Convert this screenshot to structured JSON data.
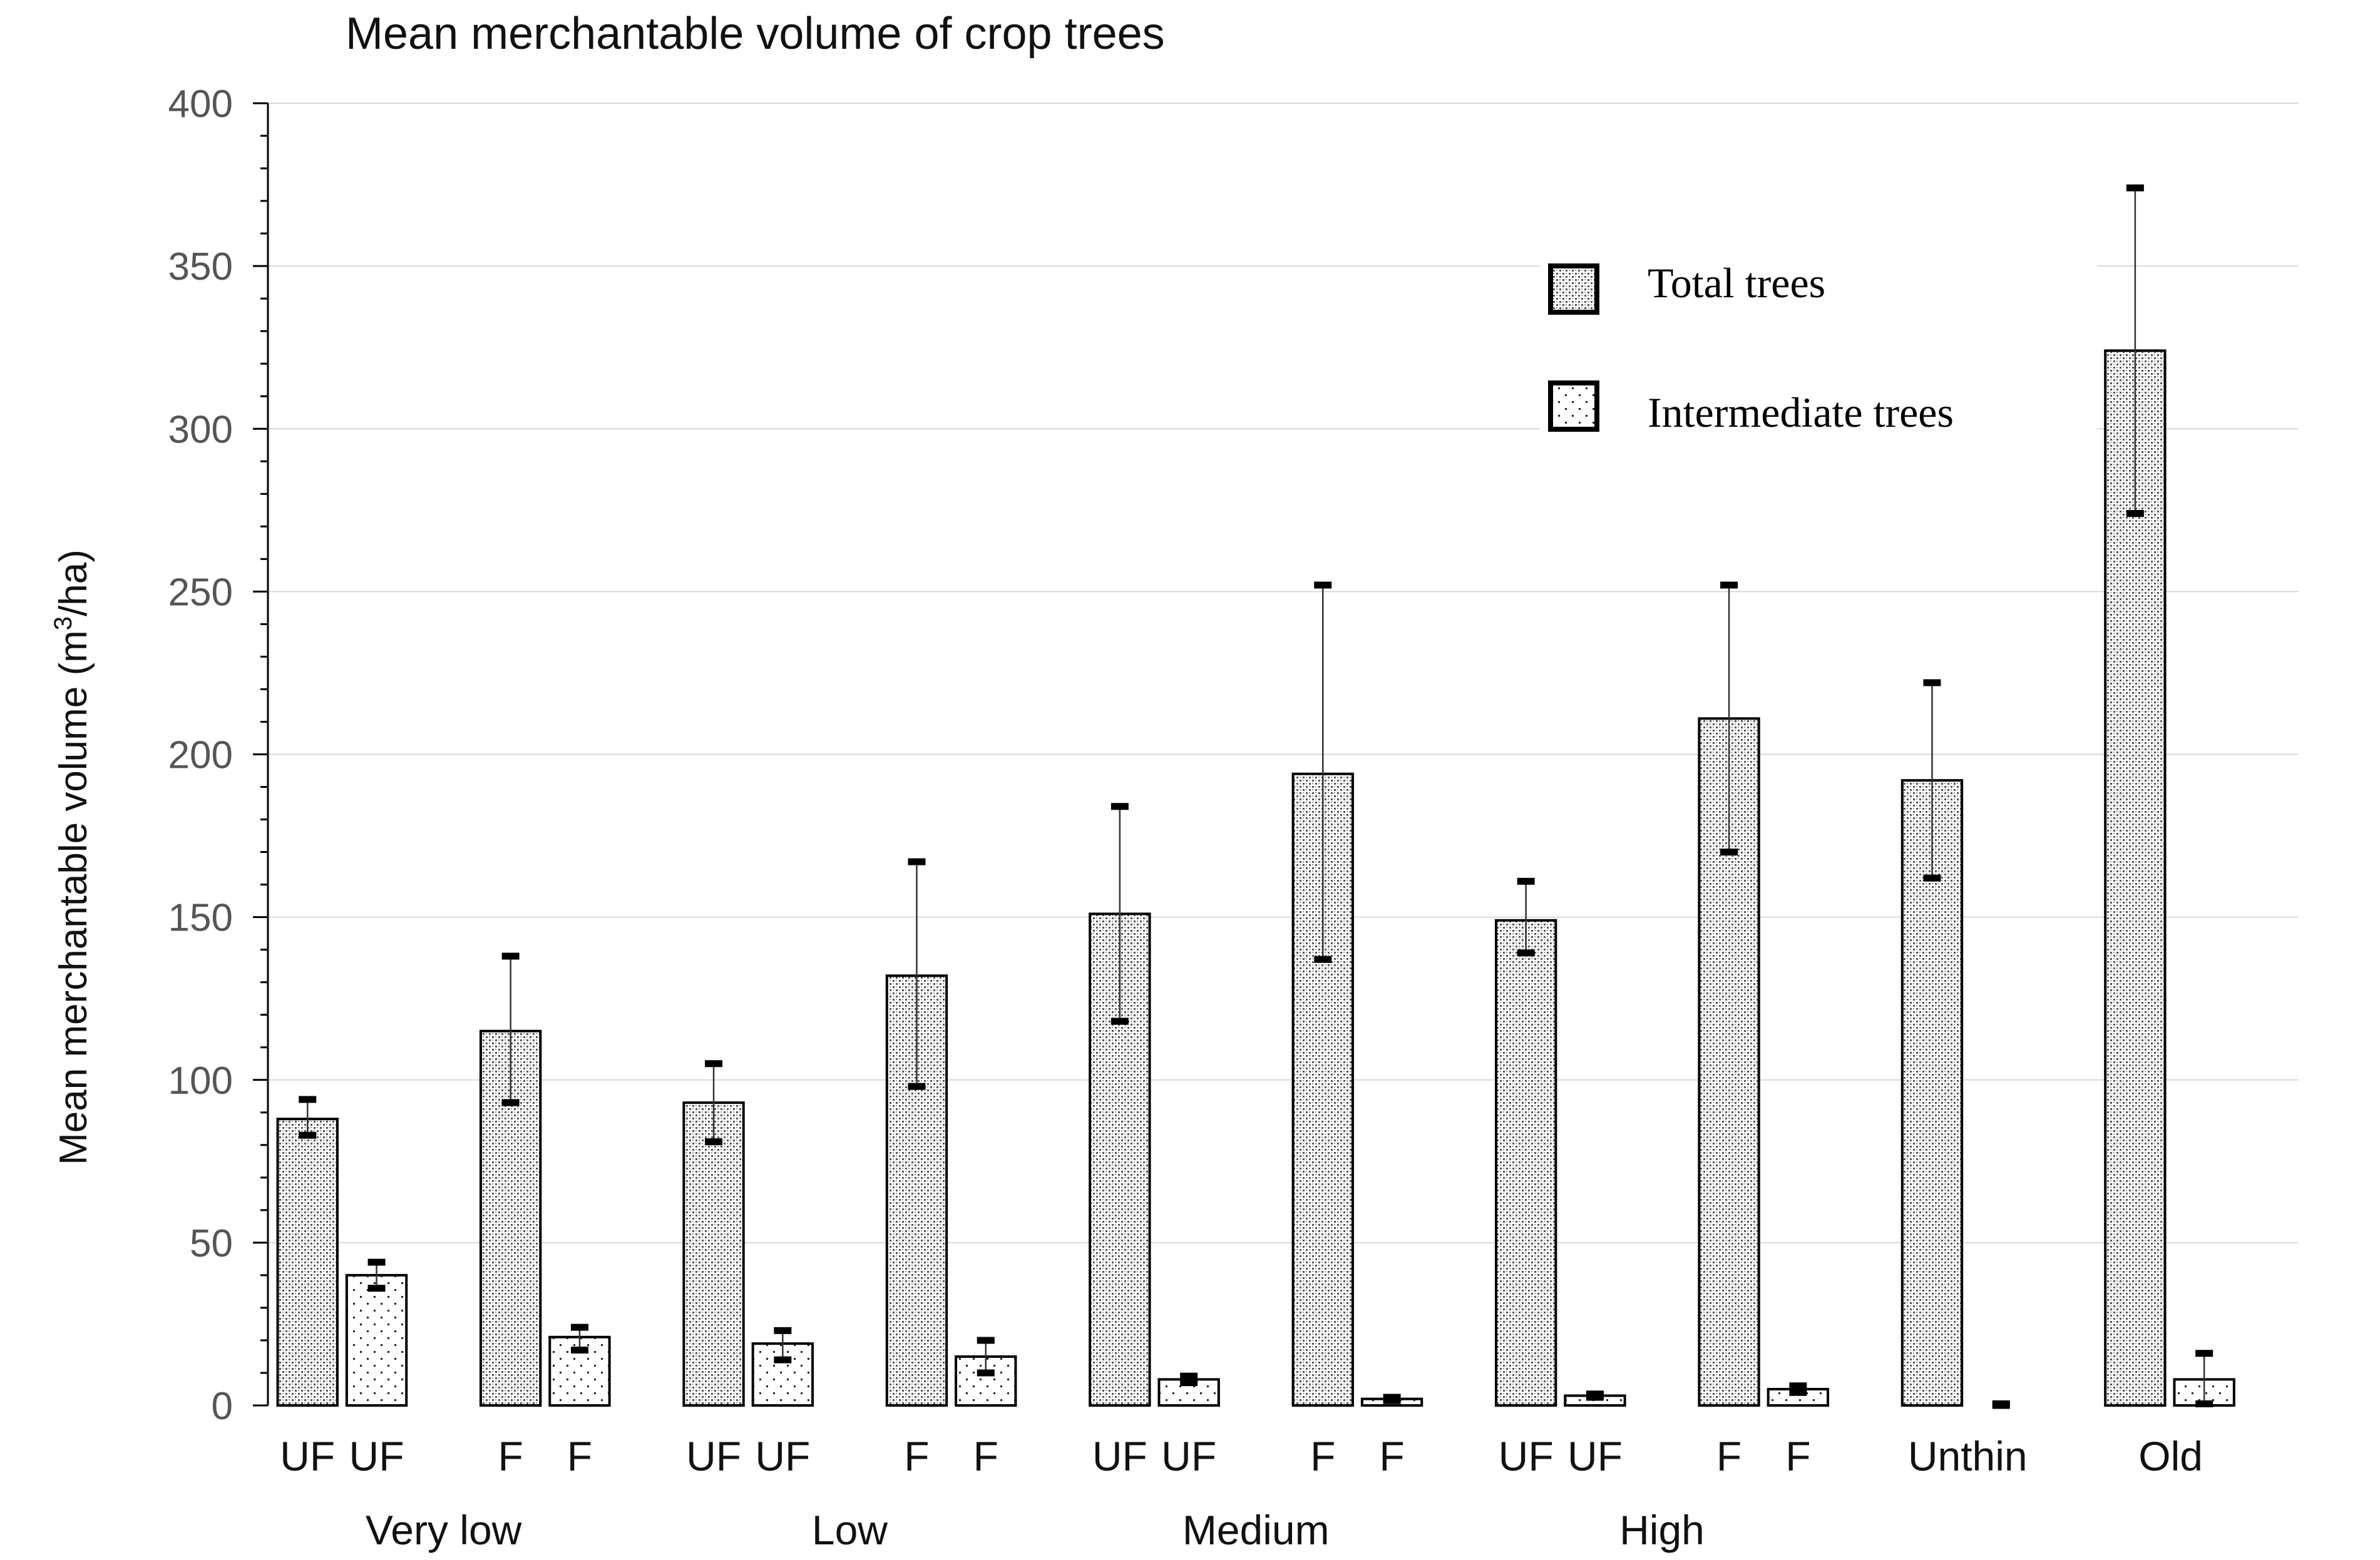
{
  "chart_data": {
    "type": "bar",
    "title": "Mean merchantable volume of crop trees",
    "ylabel": "Mean merchantable volume (m",
    "ylabel_sup": "3",
    "ylabel_tail": "/ha)",
    "xlabel": "",
    "ylim": [
      0,
      400
    ],
    "yticks": [
      0,
      50,
      100,
      150,
      200,
      250,
      300,
      350,
      400
    ],
    "grid": true,
    "legend_position": "top-right",
    "legend": [
      {
        "name": "Total trees",
        "pattern": "dense"
      },
      {
        "name": "Intermediate trees",
        "pattern": "sparse"
      }
    ],
    "groups": [
      "Very low",
      "Low",
      "Medium",
      "High"
    ],
    "bars": [
      {
        "label": "UF",
        "group": "Very low",
        "series": "Total trees",
        "value": 88,
        "err_high": 94,
        "err_low": 83
      },
      {
        "label": "UF",
        "group": "Very low",
        "series": "Intermediate trees",
        "value": 40,
        "err_high": 44,
        "err_low": 36
      },
      {
        "label": "F",
        "group": "Very low",
        "series": "Total trees",
        "value": 115,
        "err_high": 138,
        "err_low": 93
      },
      {
        "label": "F",
        "group": "Very low",
        "series": "Intermediate trees",
        "value": 21,
        "err_high": 24,
        "err_low": 17
      },
      {
        "label": "UF",
        "group": "Low",
        "series": "Total trees",
        "value": 93,
        "err_high": 105,
        "err_low": 81
      },
      {
        "label": "UF",
        "group": "Low",
        "series": "Intermediate trees",
        "value": 19,
        "err_high": 23,
        "err_low": 14
      },
      {
        "label": "F",
        "group": "Low",
        "series": "Total trees",
        "value": 132,
        "err_high": 167,
        "err_low": 98
      },
      {
        "label": "F",
        "group": "Low",
        "series": "Intermediate trees",
        "value": 15,
        "err_high": 20,
        "err_low": 10
      },
      {
        "label": "UF",
        "group": "Medium",
        "series": "Total trees",
        "value": 151,
        "err_high": 184,
        "err_low": 118
      },
      {
        "label": "UF",
        "group": "Medium",
        "series": "Intermediate trees",
        "value": 8,
        "err_high": 9,
        "err_low": 7
      },
      {
        "label": "F",
        "group": "Medium",
        "series": "Total trees",
        "value": 194,
        "err_high": 252,
        "err_low": 137
      },
      {
        "label": "F",
        "group": "Medium",
        "series": "Intermediate trees",
        "value": 2,
        "err_high": 2.5,
        "err_low": 1.5
      },
      {
        "label": "UF",
        "group": "High",
        "series": "Total trees",
        "value": 149,
        "err_high": 161,
        "err_low": 139
      },
      {
        "label": "UF",
        "group": "High",
        "series": "Intermediate trees",
        "value": 3,
        "err_high": 3.5,
        "err_low": 2.5
      },
      {
        "label": "F",
        "group": "High",
        "series": "Total trees",
        "value": 211,
        "err_high": 252,
        "err_low": 170
      },
      {
        "label": "F",
        "group": "High",
        "series": "Intermediate trees",
        "value": 5,
        "err_high": 6,
        "err_low": 4
      },
      {
        "label": "Unthin",
        "group": "",
        "series": "Total trees",
        "value": 192,
        "err_high": 222,
        "err_low": 162
      },
      {
        "label": "",
        "group": "",
        "series": "Intermediate trees",
        "value": 0,
        "err_high": 0.5,
        "err_low": 0
      },
      {
        "label": "Old",
        "group": "",
        "series": "Total trees",
        "value": 324,
        "err_high": 374,
        "err_low": 274
      },
      {
        "label": "",
        "group": "",
        "series": "Intermediate trees",
        "value": 8,
        "err_high": 16,
        "err_low": 0.5
      }
    ]
  }
}
